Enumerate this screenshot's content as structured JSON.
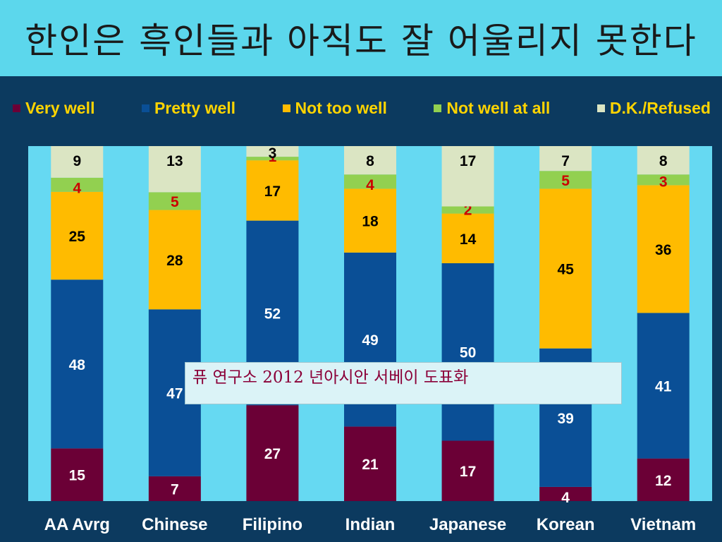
{
  "page": {
    "title": "한인은 흑인들과  아직도 잘 어울리지 못한다"
  },
  "legend": [
    {
      "label": "Very well",
      "color": "#6b0036"
    },
    {
      "label": "Pretty well",
      "color": "#0a4f96"
    },
    {
      "label": "Not too well",
      "color": "#ffbb00"
    },
    {
      "label": "Not well at all",
      "color": "#92d050"
    },
    {
      "label": "D.K./Refused",
      "color": "#dbe5c3"
    }
  ],
  "source_note": "퓨 연구소 2012 년아시안 서베이 도표화",
  "colors": {
    "title_bg": "#5cd7ec",
    "panel_bg": "#0c3a5f",
    "plot_bg": "#66d9f2",
    "legend_text": "#ffd400",
    "source_text": "#8b0038"
  },
  "chart_data": {
    "type": "bar",
    "stacked": true,
    "ylim": [
      0,
      100
    ],
    "categories": [
      "AA Avrg",
      "Chinese",
      "Filipino",
      "Indian",
      "Japanese",
      "Korean",
      "Vietnam"
    ],
    "series": [
      {
        "name": "Very well",
        "values": [
          15,
          7,
          27,
          21,
          17,
          4,
          12
        ]
      },
      {
        "name": "Pretty well",
        "values": [
          48,
          47,
          52,
          49,
          50,
          39,
          41
        ]
      },
      {
        "name": "Not too well",
        "values": [
          25,
          28,
          17,
          18,
          14,
          45,
          36
        ]
      },
      {
        "name": "Not well at all",
        "values": [
          4,
          5,
          1,
          4,
          2,
          5,
          3
        ]
      },
      {
        "name": "D.K./Refused",
        "values": [
          9,
          13,
          3,
          8,
          17,
          7,
          8
        ]
      }
    ],
    "label_colors": [
      "#ffffff",
      "#ffffff",
      "#000000",
      "#cc0000",
      "#000000"
    ],
    "legend_position": "top",
    "grid": false
  }
}
